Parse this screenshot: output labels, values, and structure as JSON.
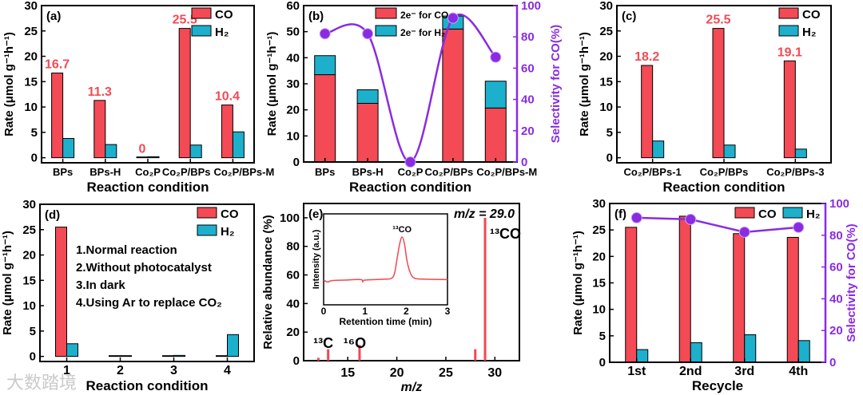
{
  "colors": {
    "co": "#f34a55",
    "h2": "#1cb0cc",
    "selectivity": "#8a2be2",
    "ms": "#f04850"
  },
  "watermark": "大数踏境",
  "chart_data": [
    {
      "panel": "(a)",
      "type": "bar",
      "categories": [
        "BPs",
        "BPs-H",
        "Co₂P",
        "Co₂P/BPs",
        "Co₂P/BPs-M"
      ],
      "series": [
        {
          "name": "CO",
          "values": [
            16.7,
            11.3,
            0,
            25.5,
            10.4
          ]
        },
        {
          "name": "H₂",
          "values": [
            3.8,
            2.6,
            0.2,
            2.5,
            5.1
          ]
        }
      ],
      "data_labels": [
        "16.7",
        "11.3",
        "0",
        "25.5",
        "10.4"
      ],
      "xlabel": "Reaction condition",
      "ylabel": "Rate (μmol g⁻¹h⁻¹)",
      "ylim": [
        -1,
        30
      ],
      "yticks": [
        0,
        5,
        10,
        15,
        20,
        25,
        30
      ],
      "legend": "top-right"
    },
    {
      "panel": "(b)",
      "type": "bar-stacked+line",
      "categories": [
        "BPs",
        "BPs-H",
        "Co₂P",
        "Co₂P/BPs",
        "Co₂P/BPs-M"
      ],
      "series": [
        {
          "name": "2e⁻ for CO",
          "values": [
            33.5,
            22.5,
            0,
            51,
            20.7
          ]
        },
        {
          "name": "2e⁻ for H₂",
          "values": [
            7.3,
            5.2,
            0,
            5,
            10.3
          ]
        }
      ],
      "line": {
        "name": "Selectivity",
        "values": [
          82,
          82,
          0,
          92,
          67
        ]
      },
      "xlabel": "Reaction condition",
      "ylabel": "Rate (μmol g⁻¹h⁻¹)",
      "y2label": "Selectivity for CO(%)",
      "ylim": [
        0,
        60
      ],
      "yticks": [
        0,
        10,
        20,
        30,
        40,
        50,
        60
      ],
      "y2lim": [
        0,
        100
      ],
      "y2ticks": [
        0,
        20,
        40,
        60,
        80,
        100
      ],
      "legend": "top-center"
    },
    {
      "panel": "(c)",
      "type": "bar",
      "categories": [
        "Co₂P/BPs-1",
        "Co₂P/BPs",
        "Co₂P/BPs-3"
      ],
      "series": [
        {
          "name": "CO",
          "values": [
            18.2,
            25.5,
            19.1
          ]
        },
        {
          "name": "H₂",
          "values": [
            3.3,
            2.5,
            1.7
          ]
        }
      ],
      "data_labels": [
        "18.2",
        "25.5",
        "19.1"
      ],
      "xlabel": "Reaction condition",
      "ylabel": "Rate (μmol g⁻¹h⁻¹)",
      "ylim": [
        -1,
        30
      ],
      "yticks": [
        0,
        5,
        10,
        15,
        20,
        25,
        30
      ],
      "legend": "top-right"
    },
    {
      "panel": "(d)",
      "type": "bar",
      "categories": [
        "1",
        "2",
        "3",
        "4"
      ],
      "series": [
        {
          "name": "CO",
          "values": [
            25.5,
            0.1,
            0.1,
            0.1
          ]
        },
        {
          "name": "H₂",
          "values": [
            2.5,
            0.1,
            0.2,
            4.3
          ]
        }
      ],
      "annotations": [
        "1.Normal reaction",
        "2.Without photocatalyst",
        "3.In dark",
        "4.Using Ar to replace CO₂"
      ],
      "xlabel": "Reaction condition",
      "ylabel": "Rate (μmol g⁻¹h⁻¹)",
      "ylim": [
        -1,
        30
      ],
      "yticks": [
        0,
        5,
        10,
        15,
        20,
        25,
        30
      ],
      "legend": "top-right"
    },
    {
      "panel": "(e)",
      "type": "bar-spectrum",
      "x": [
        12,
        13,
        16.2,
        28,
        29
      ],
      "values": [
        2,
        8,
        11,
        8,
        100
      ],
      "peak_labels": [
        {
          "x": 13,
          "text": "¹³C"
        },
        {
          "x": 16.2,
          "text": "¹⁶O"
        },
        {
          "x": 29,
          "text": "¹³CO"
        }
      ],
      "title": "m/z = 29.0",
      "xlabel": "m/z",
      "ylabel": "Relative abundance (%)",
      "xlim": [
        10.5,
        32.5
      ],
      "xticks": [
        15,
        20,
        25,
        30
      ],
      "ylim": [
        0,
        110
      ],
      "yticks": [
        0,
        20,
        40,
        60,
        80,
        100
      ],
      "inset": {
        "type": "line",
        "xlabel": "Retention time (min)",
        "ylabel": "Intensity (a.u.)",
        "xlim": [
          0,
          3
        ],
        "xticks": [
          0,
          1,
          2,
          3
        ],
        "peak_label": "¹³CO",
        "x": [
          0,
          0.1,
          0.2,
          0.5,
          0.9,
          0.95,
          1.0,
          1.5,
          1.65,
          1.72,
          1.78,
          1.84,
          1.9,
          1.96,
          2.02,
          2.1,
          2.2,
          2.4,
          3.0
        ],
        "y": [
          0.1,
          0.06,
          0.09,
          0.1,
          0.11,
          0.06,
          0.1,
          0.12,
          0.14,
          0.25,
          0.55,
          0.85,
          1.0,
          0.85,
          0.5,
          0.25,
          0.14,
          0.12,
          0.11
        ]
      }
    },
    {
      "panel": "(f)",
      "type": "bar+line",
      "categories": [
        "1st",
        "2nd",
        "3rd",
        "4th"
      ],
      "series": [
        {
          "name": "CO",
          "values": [
            25.5,
            27.6,
            24.3,
            23.6
          ]
        },
        {
          "name": "H₂",
          "values": [
            2.4,
            3.7,
            5.2,
            4.1
          ]
        }
      ],
      "line": {
        "name": "Selectivity",
        "values": [
          91,
          90,
          82,
          85
        ]
      },
      "xlabel": "Recycle",
      "ylabel": "Rate (μmol g⁻¹h⁻¹)",
      "y2label": "Selectivity for CO(%)",
      "ylim": [
        0,
        30
      ],
      "yticks": [
        0,
        5,
        10,
        15,
        20,
        25,
        30
      ],
      "y2lim": [
        0,
        100
      ],
      "y2ticks": [
        0,
        20,
        40,
        60,
        80,
        100
      ],
      "legend": "top-right"
    }
  ]
}
